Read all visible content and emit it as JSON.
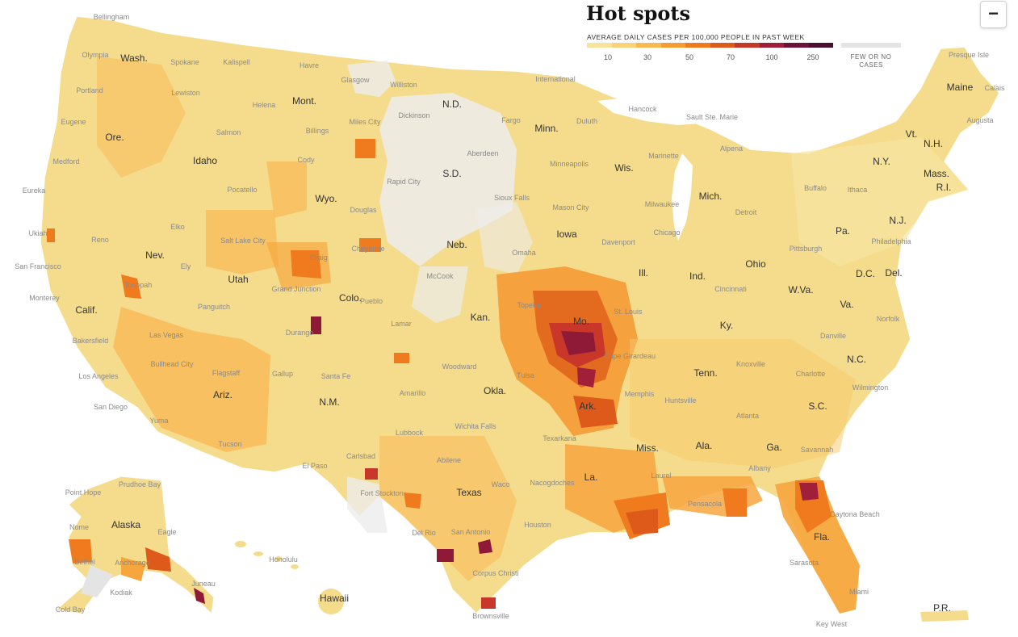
{
  "title": "Hot spots",
  "legend": {
    "subtitle": "AVERAGE DAILY CASES PER 100,000 PEOPLE IN PAST WEEK",
    "ticks": [
      "10",
      "30",
      "50",
      "70",
      "100",
      "250"
    ],
    "colors": [
      "#f7e39a",
      "#f9d27a",
      "#f8b950",
      "#f69c33",
      "#ef7b1e",
      "#de5a1a",
      "#c63629",
      "#9d1d3a",
      "#6b1238",
      "#4a0e2e"
    ],
    "no_data_label": "FEW OR NO CASES",
    "no_data_color": "#e4e4e4"
  },
  "zoom_out_label": "−",
  "states": [
    "Wash.",
    "Ore.",
    "Calif.",
    "Idaho",
    "Nev.",
    "Mont.",
    "Wyo.",
    "Utah",
    "Ariz.",
    "Colo.",
    "N.M.",
    "N.D.",
    "S.D.",
    "Neb.",
    "Kan.",
    "Okla.",
    "Texas",
    "Minn.",
    "Iowa",
    "Mo.",
    "Ark.",
    "La.",
    "Wis.",
    "Ill.",
    "Miss.",
    "Mich.",
    "Ind.",
    "Ky.",
    "Tenn.",
    "Ala.",
    "Ohio",
    "Ga.",
    "Fla.",
    "S.C.",
    "N.C.",
    "Va.",
    "W.Va.",
    "Pa.",
    "N.Y.",
    "Vt.",
    "N.H.",
    "Maine",
    "Mass.",
    "R.I.",
    "N.J.",
    "D.C.",
    "Del.",
    "Alaska",
    "Hawaii",
    "P.R."
  ],
  "cities": [
    "Bellingham",
    "Olympia",
    "Spokane",
    "Kalispell",
    "Havre",
    "Glasgow",
    "Williston",
    "International",
    "Portland",
    "Lewiston",
    "Helena",
    "Miles City",
    "Dickinson",
    "Fargo",
    "Hancock",
    "Sault Ste. Marie",
    "Eugene",
    "Salmon",
    "Billings",
    "Duluth",
    "Alpena",
    "Medford",
    "Cody",
    "Aberdeen",
    "Minneapolis",
    "Marinette",
    "Eureka",
    "Pocatello",
    "Rapid City",
    "Sioux Falls",
    "Milwaukee",
    "Buffalo",
    "Ithaca",
    "Augusta",
    "Presque Isle",
    "Calais",
    "Elko",
    "Douglas",
    "Mason City",
    "Detroit",
    "Reno",
    "Salt Lake City",
    "Cheyenne",
    "Davenport",
    "Chicago",
    "Pittsburgh",
    "Philadelphia",
    "Ukiah",
    "Craig",
    "McCook",
    "Omaha",
    "San Francisco",
    "Ely",
    "Grand Junction",
    "Topeka",
    "Cincinnati",
    "Monterey",
    "Tonopah",
    "Pueblo",
    "St. Louis",
    "Bakersfield",
    "Panguitch",
    "Durango",
    "Lamar",
    "Norfolk",
    "Danville",
    "Las Vegas",
    "Cape Girardeau",
    "Knoxville",
    "Bullhead City",
    "Flagstaff",
    "Gallup",
    "Santa Fe",
    "Woodward",
    "Tulsa",
    "Los Angeles",
    "Charlotte",
    "Amarillo",
    "Memphis",
    "Huntsville",
    "Wilmington",
    "San Diego",
    "Yuma",
    "Atlanta",
    "Wichita Falls",
    "Lubbock",
    "Texarkana",
    "Tucson",
    "Savannah",
    "Abilene",
    "Carlsbad",
    "El Paso",
    "Albany",
    "Fort Stockton",
    "Waco",
    "Nacogdoches",
    "Laurel",
    "Point Hope",
    "Prudhoe Bay",
    "Pensacola",
    "Daytona Beach",
    "Houston",
    "Nome",
    "Eagle",
    "Del Rio",
    "San Antonio",
    "Bethel",
    "Anchorage",
    "Honolulu",
    "Corpus Christi",
    "Sarasota",
    "Kodiak",
    "Juneau",
    "Miami",
    "Cold Bay",
    "Brownsville",
    "Key West"
  ],
  "hotspot_level_note": ""
}
